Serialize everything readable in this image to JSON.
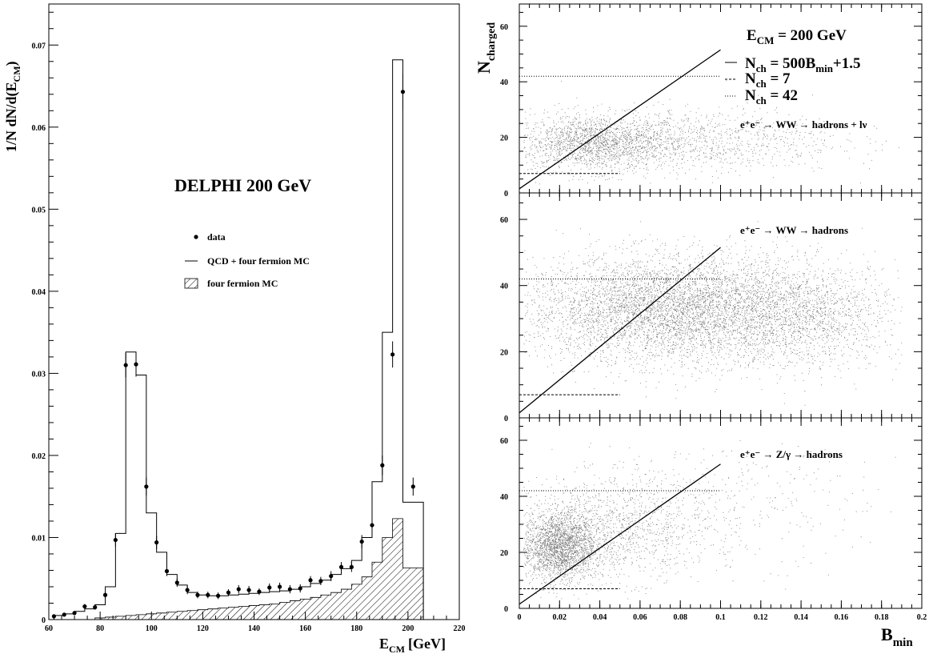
{
  "chart_data": [
    {
      "type": "histogram",
      "ylabel_main": "1/N dN/d(E",
      "ylabel_sub": "CM",
      "ylabel_close": ")",
      "xlabel_main": "E",
      "xlabel_sub": "CM",
      "xlabel_unit": "[GeV]",
      "title": "DELPHI 200 GeV",
      "xlim": [
        60,
        220
      ],
      "ylim": [
        0,
        0.075
      ],
      "x_ticks": [
        "60",
        "80",
        "100",
        "120",
        "140",
        "160",
        "180",
        "200",
        "220"
      ],
      "y_ticks": [
        "0",
        "0.01",
        "0.02",
        "0.03",
        "0.04",
        "0.05",
        "0.06",
        "0.07"
      ],
      "legend": {
        "placement": "middle-left",
        "data_label": "data",
        "mc_label": "QCD + four fermion MC",
        "ff_label": "four fermion MC"
      },
      "mc_edges": [
        62,
        66,
        70,
        74,
        78,
        82,
        86,
        90,
        94,
        98,
        102,
        106,
        110,
        114,
        118,
        122,
        126,
        130,
        134,
        138,
        142,
        146,
        150,
        154,
        158,
        162,
        166,
        170,
        174,
        178,
        182,
        186,
        190,
        194,
        198,
        202,
        206
      ],
      "mc_values": [
        0.0005,
        0.0007,
        0.001,
        0.0013,
        0.0018,
        0.004,
        0.0105,
        0.0326,
        0.0298,
        0.013,
        0.0082,
        0.0055,
        0.0042,
        0.0033,
        0.003,
        0.0029,
        0.0029,
        0.003,
        0.0031,
        0.0032,
        0.0033,
        0.0034,
        0.0035,
        0.0037,
        0.004,
        0.0044,
        0.0048,
        0.0055,
        0.0062,
        0.0072,
        0.01,
        0.0168,
        0.035,
        0.0682,
        0.0143,
        0.0143
      ],
      "ff_values": [
        0,
        0,
        0,
        0,
        0.0002,
        0.0003,
        0.0004,
        0.0005,
        0.0006,
        0.0007,
        0.0008,
        0.0009,
        0.001,
        0.0011,
        0.0012,
        0.0013,
        0.0014,
        0.0015,
        0.0016,
        0.0017,
        0.0018,
        0.0019,
        0.0021,
        0.0023,
        0.0025,
        0.0027,
        0.003,
        0.0033,
        0.0037,
        0.0043,
        0.0052,
        0.007,
        0.01,
        0.0123,
        0.0063,
        0.0063
      ],
      "data_points": [
        {
          "x": 62,
          "y": 0.0004,
          "err": 0.0002
        },
        {
          "x": 66,
          "y": 0.0006,
          "err": 0.0002
        },
        {
          "x": 70,
          "y": 0.0008,
          "err": 0.0002
        },
        {
          "x": 74,
          "y": 0.0016,
          "err": 0.0003
        },
        {
          "x": 78,
          "y": 0.0015,
          "err": 0.0003
        },
        {
          "x": 82,
          "y": 0.003,
          "err": 0.0004
        },
        {
          "x": 86,
          "y": 0.0097,
          "err": 0.0008
        },
        {
          "x": 90,
          "y": 0.031,
          "err": 0.0015
        },
        {
          "x": 94,
          "y": 0.0311,
          "err": 0.0015
        },
        {
          "x": 98,
          "y": 0.0162,
          "err": 0.0011
        },
        {
          "x": 102,
          "y": 0.0094,
          "err": 0.0008
        },
        {
          "x": 106,
          "y": 0.0059,
          "err": 0.0006
        },
        {
          "x": 110,
          "y": 0.0045,
          "err": 0.0005
        },
        {
          "x": 114,
          "y": 0.0036,
          "err": 0.0005
        },
        {
          "x": 118,
          "y": 0.003,
          "err": 0.0004
        },
        {
          "x": 122,
          "y": 0.003,
          "err": 0.0004
        },
        {
          "x": 126,
          "y": 0.0029,
          "err": 0.0004
        },
        {
          "x": 130,
          "y": 0.0033,
          "err": 0.0004
        },
        {
          "x": 134,
          "y": 0.0037,
          "err": 0.0005
        },
        {
          "x": 138,
          "y": 0.0036,
          "err": 0.0005
        },
        {
          "x": 142,
          "y": 0.0034,
          "err": 0.0004
        },
        {
          "x": 146,
          "y": 0.0039,
          "err": 0.0005
        },
        {
          "x": 150,
          "y": 0.004,
          "err": 0.0005
        },
        {
          "x": 154,
          "y": 0.0037,
          "err": 0.0005
        },
        {
          "x": 158,
          "y": 0.0038,
          "err": 0.0005
        },
        {
          "x": 162,
          "y": 0.0048,
          "err": 0.0005
        },
        {
          "x": 166,
          "y": 0.0047,
          "err": 0.0005
        },
        {
          "x": 170,
          "y": 0.0053,
          "err": 0.0006
        },
        {
          "x": 174,
          "y": 0.0064,
          "err": 0.0006
        },
        {
          "x": 178,
          "y": 0.0064,
          "err": 0.0006
        },
        {
          "x": 182,
          "y": 0.0095,
          "err": 0.0008
        },
        {
          "x": 186,
          "y": 0.0115,
          "err": 0.0009
        },
        {
          "x": 190,
          "y": 0.0188,
          "err": 0.0012
        },
        {
          "x": 194,
          "y": 0.0323,
          "err": 0.0016
        },
        {
          "x": 198,
          "y": 0.0643,
          "err": 0.0022
        },
        {
          "x": 202,
          "y": 0.0162,
          "err": 0.0011
        }
      ]
    },
    {
      "type": "scatter",
      "ylabel_main": "N",
      "ylabel_sub": "charged",
      "xlabel_main": "B",
      "xlabel_sub": "min",
      "xlim": [
        0,
        0.2
      ],
      "ylim": [
        0,
        68
      ],
      "x_ticks": [
        "0",
        "0.02",
        "0.04",
        "0.06",
        "0.08",
        "0.1",
        "0.12",
        "0.14",
        "0.16",
        "0.18",
        "0.2"
      ],
      "y_ticks": [
        "0",
        "20",
        "40",
        "60"
      ],
      "header": {
        "ecm_main": "E",
        "ecm_sub": "CM",
        "ecm_value": " = 200 GeV"
      },
      "legend": [
        {
          "style": "solid",
          "main": "N",
          "sub": "ch",
          "b_sym": "B",
          "b_sub": "min",
          "pre": " = 500",
          "post": "+1.5"
        },
        {
          "style": "dashed",
          "main": "N",
          "sub": "ch",
          "text": " = 7"
        },
        {
          "style": "dotted",
          "main": "N",
          "sub": "ch",
          "text": " = 42"
        }
      ],
      "cut_lines": {
        "solid": {
          "slope": 500,
          "intercept": 1.5,
          "x_range": [
            0,
            0.1
          ]
        },
        "dashed": {
          "y": 7,
          "x_range": [
            0,
            0.05
          ]
        },
        "dotted": {
          "y": 42,
          "x_range": [
            0,
            0.1
          ]
        }
      },
      "panels": [
        {
          "label": "e⁺e⁻ → WW → hadrons + lν",
          "clusters": [
            {
              "cx": 0.038,
              "cy": 18,
              "sx": 0.022,
              "sy": 5,
              "n": 1900
            },
            {
              "cx": 0.09,
              "cy": 19,
              "sx": 0.035,
              "sy": 6,
              "n": 900
            }
          ]
        },
        {
          "label": "e⁺e⁻ → WW → hadrons",
          "clusters": [
            {
              "cx": 0.075,
              "cy": 33,
              "sx": 0.036,
              "sy": 8,
              "n": 6500
            },
            {
              "cx": 0.14,
              "cy": 31,
              "sx": 0.025,
              "sy": 8,
              "n": 1500
            }
          ]
        },
        {
          "label": "e⁺e⁻ → Z/γ → hadrons",
          "clusters": [
            {
              "cx": 0.02,
              "cy": 22,
              "sx": 0.009,
              "sy": 6,
              "n": 2200
            },
            {
              "cx": 0.045,
              "cy": 28,
              "sx": 0.025,
              "sy": 9,
              "n": 1300
            },
            {
              "cx": 0.09,
              "cy": 38,
              "sx": 0.04,
              "sy": 12,
              "n": 400
            }
          ]
        }
      ]
    }
  ]
}
